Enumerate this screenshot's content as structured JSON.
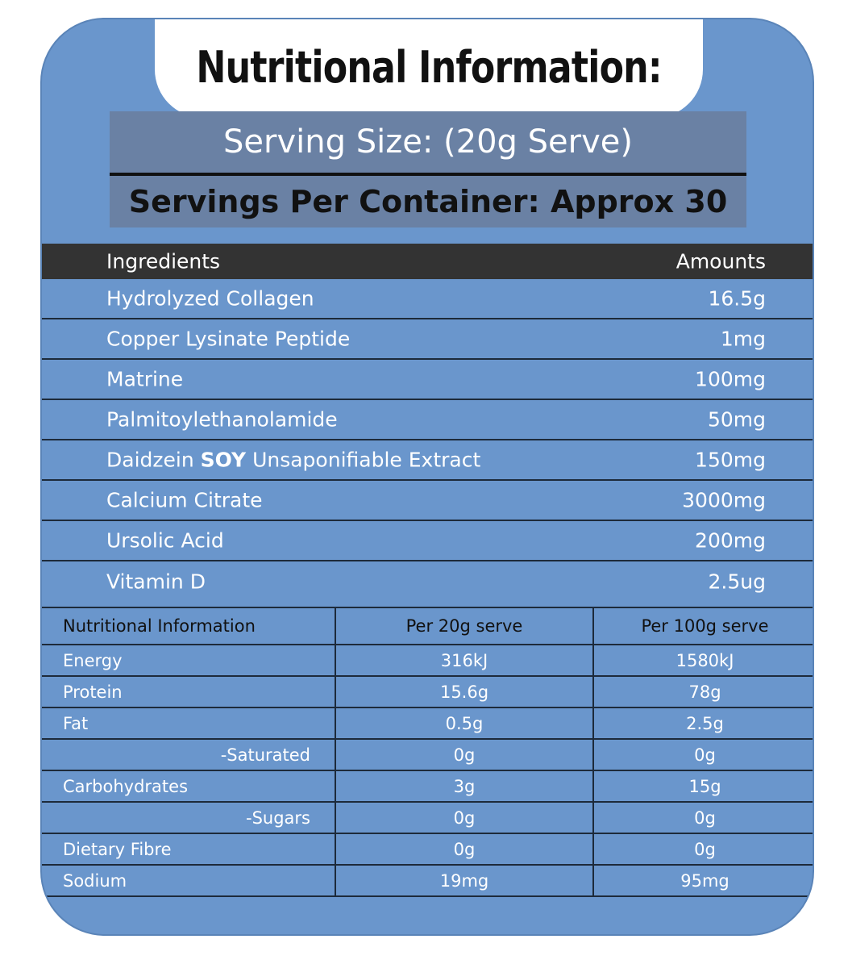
{
  "title": "Nutritional Information:",
  "serving_size": "Serving Size: (20g Serve)",
  "servings_per_container": "Servings Per Container: Approx 30",
  "ingredients_header": {
    "left": "Ingredients",
    "right": "Amounts"
  },
  "ingredients": [
    {
      "name": "Hydrolyzed Collagen",
      "amount": "16.5g"
    },
    {
      "name": "Copper Lysinate Peptide",
      "amount": "1mg"
    },
    {
      "name": "Matrine",
      "amount": "100mg"
    },
    {
      "name": "Palmitoylethanolamide",
      "amount": "50mg"
    },
    {
      "name_pre": "Daidzein ",
      "name_bold": "SOY",
      "name_post": " Unsaponifiable Extract",
      "amount": "150mg"
    },
    {
      "name": "Calcium Citrate",
      "amount": "3000mg"
    },
    {
      "name": "Ursolic Acid",
      "amount": "200mg"
    },
    {
      "name": "Vitamin D",
      "amount": "2.5ug"
    }
  ],
  "nutrition_header": [
    "Nutritional Information",
    "Per 20g serve",
    "Per 100g serve"
  ],
  "nutrition_rows": [
    {
      "label": "Energy",
      "per20": "316kJ",
      "per100": "1580kJ"
    },
    {
      "label": "Protein",
      "per20": "15.6g",
      "per100": "78g"
    },
    {
      "label": "Fat",
      "per20": "0.5g",
      "per100": "2.5g"
    },
    {
      "label": "-Saturated",
      "per20": "0g",
      "per100": "0g"
    },
    {
      "label": "Carbohydrates",
      "per20": "3g",
      "per100": "15g"
    },
    {
      "label": "-Sugars",
      "per20": "0g",
      "per100": "0g"
    },
    {
      "label": "Dietary Fibre",
      "per20": "0g",
      "per100": "0g"
    },
    {
      "label": "Sodium",
      "per20": "19mg",
      "per100": "95mg"
    }
  ]
}
